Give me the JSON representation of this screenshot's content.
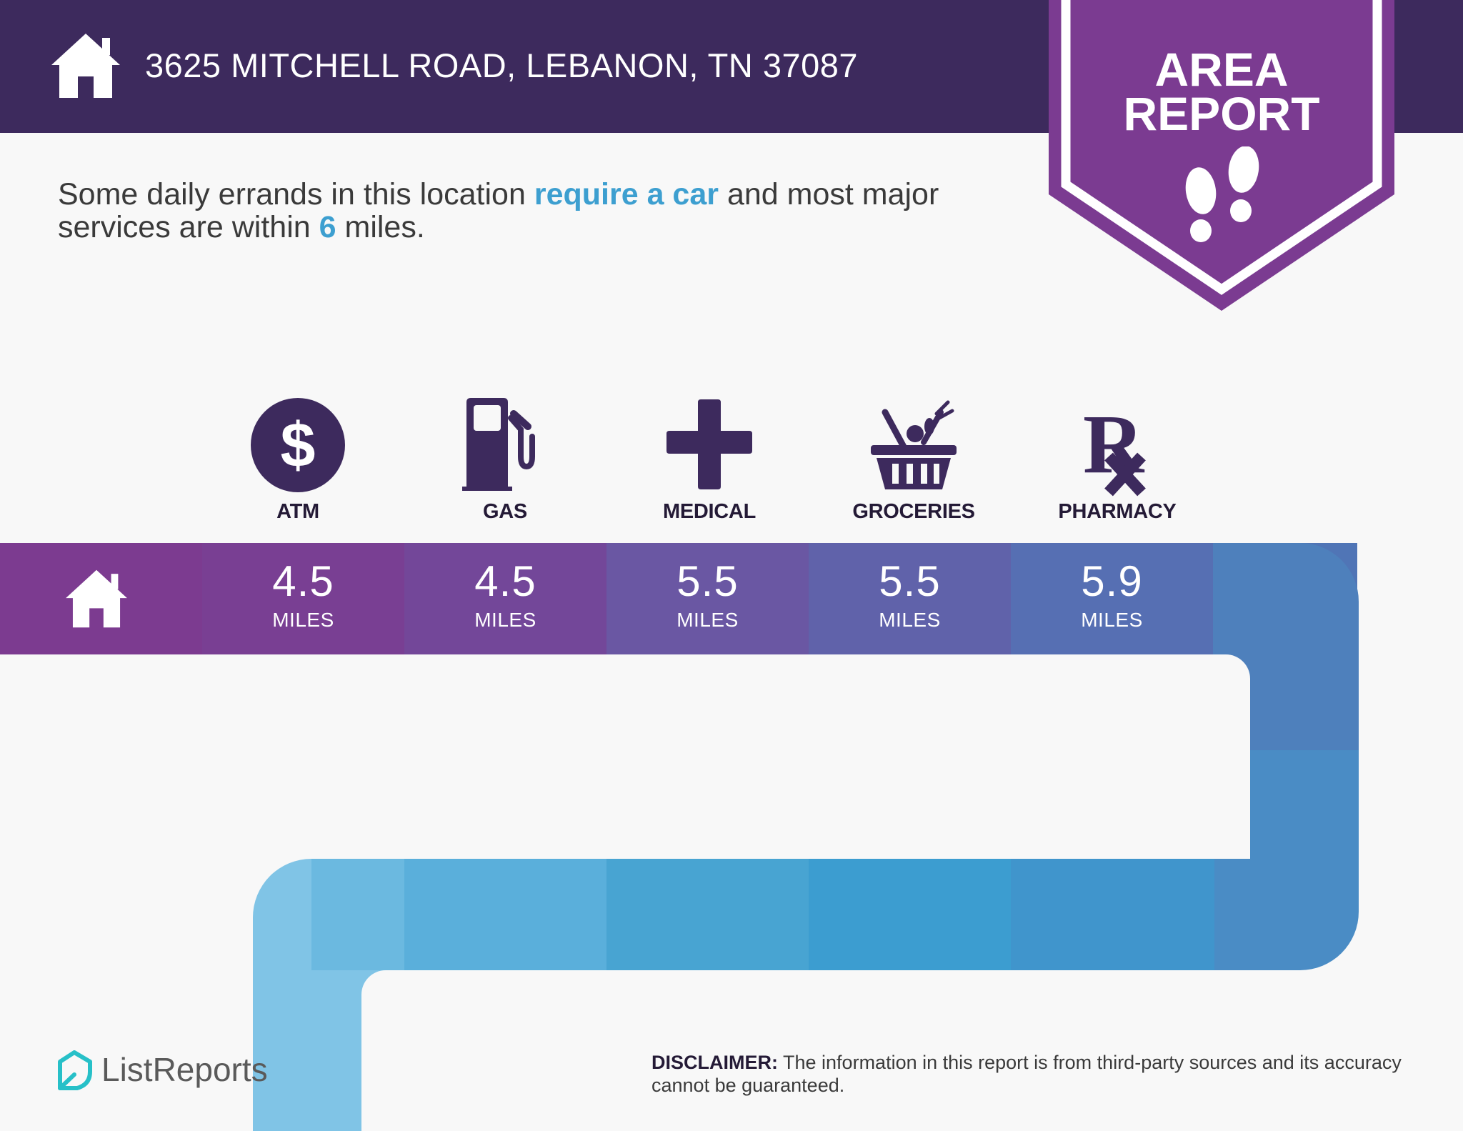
{
  "header": {
    "address": "3625 MITCHELL ROAD, LEBANON, TN 37087",
    "icon": "house-icon",
    "bg_color": "#3d2a5d"
  },
  "badge": {
    "line1": "AREA",
    "line2": "REPORT",
    "icon": "footprints-icon",
    "color": "#7b3b91"
  },
  "summary": {
    "part1": "Some daily errands in this location ",
    "highlight1": "require a car",
    "part2": " and most major services are within ",
    "highlight2": "6",
    "part3": " miles.",
    "highlight_color": "#3d9fd0"
  },
  "categories": [
    {
      "label": "ATM",
      "icon": "dollar-icon",
      "distance": "4.5",
      "unit": "MILES"
    },
    {
      "label": "GAS",
      "icon": "gas-pump-icon",
      "distance": "4.5",
      "unit": "MILES"
    },
    {
      "label": "MEDICAL",
      "icon": "medical-cross-icon",
      "distance": "5.5",
      "unit": "MILES"
    },
    {
      "label": "GROCERIES",
      "icon": "grocery-basket-icon",
      "distance": "5.5",
      "unit": "MILES"
    },
    {
      "label": "PHARMACY",
      "icon": "rx-icon",
      "distance": "5.9",
      "unit": "MILES"
    }
  ],
  "footer": {
    "logo_text": "ListReports",
    "logo_icon": "listreports-logo-icon",
    "disclaimer_bold": "DISCLAIMER:",
    "disclaimer_text": " The information in this report is from third-party sources and its accuracy cannot be guaranteed."
  }
}
